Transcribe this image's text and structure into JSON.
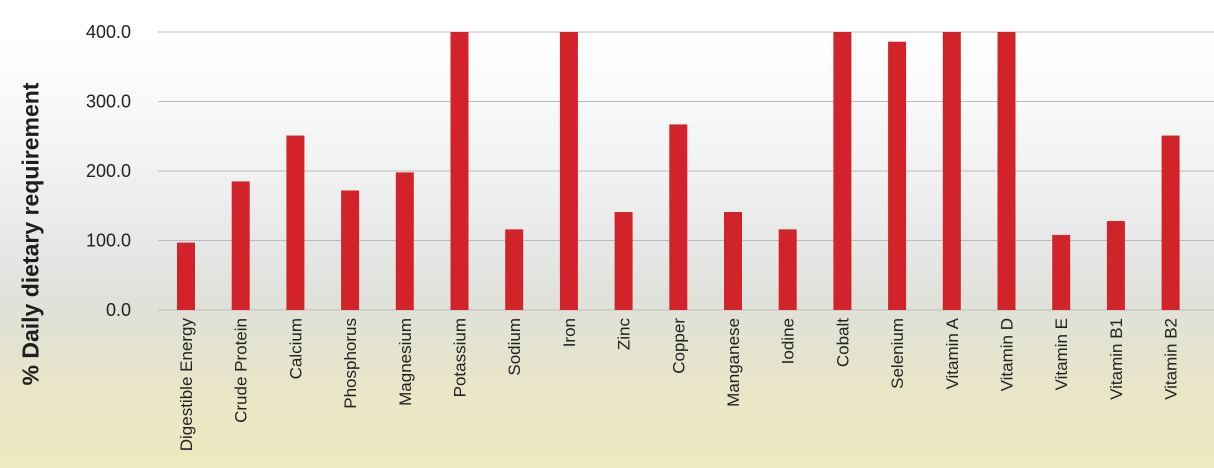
{
  "chart_data": {
    "type": "bar",
    "ylabel": "% Daily dietary requirement",
    "xlabel": "",
    "ylim": [
      0,
      400
    ],
    "yticks": [
      "400.0",
      "300.0",
      "200.0",
      "100.0",
      "0.0"
    ],
    "grid": true,
    "categories": [
      "Digestible Energy",
      "Crude Protein",
      "Calcium",
      "Phosphorus",
      "Magnesium",
      "Potassium",
      "Sodium",
      "Iron",
      "Zinc",
      "Copper",
      "Manganese",
      "Iodine",
      "Cobalt",
      "Selenium",
      "Vitamin A",
      "Vitamin D",
      "Vitamin E",
      "Vitamin B1",
      "Vitamin B2"
    ],
    "values": [
      97,
      185,
      251,
      172,
      198,
      400,
      116,
      400,
      141,
      267,
      141,
      116,
      400,
      386,
      400,
      400,
      108,
      128,
      251
    ],
    "bar_color": "#d2232a"
  }
}
